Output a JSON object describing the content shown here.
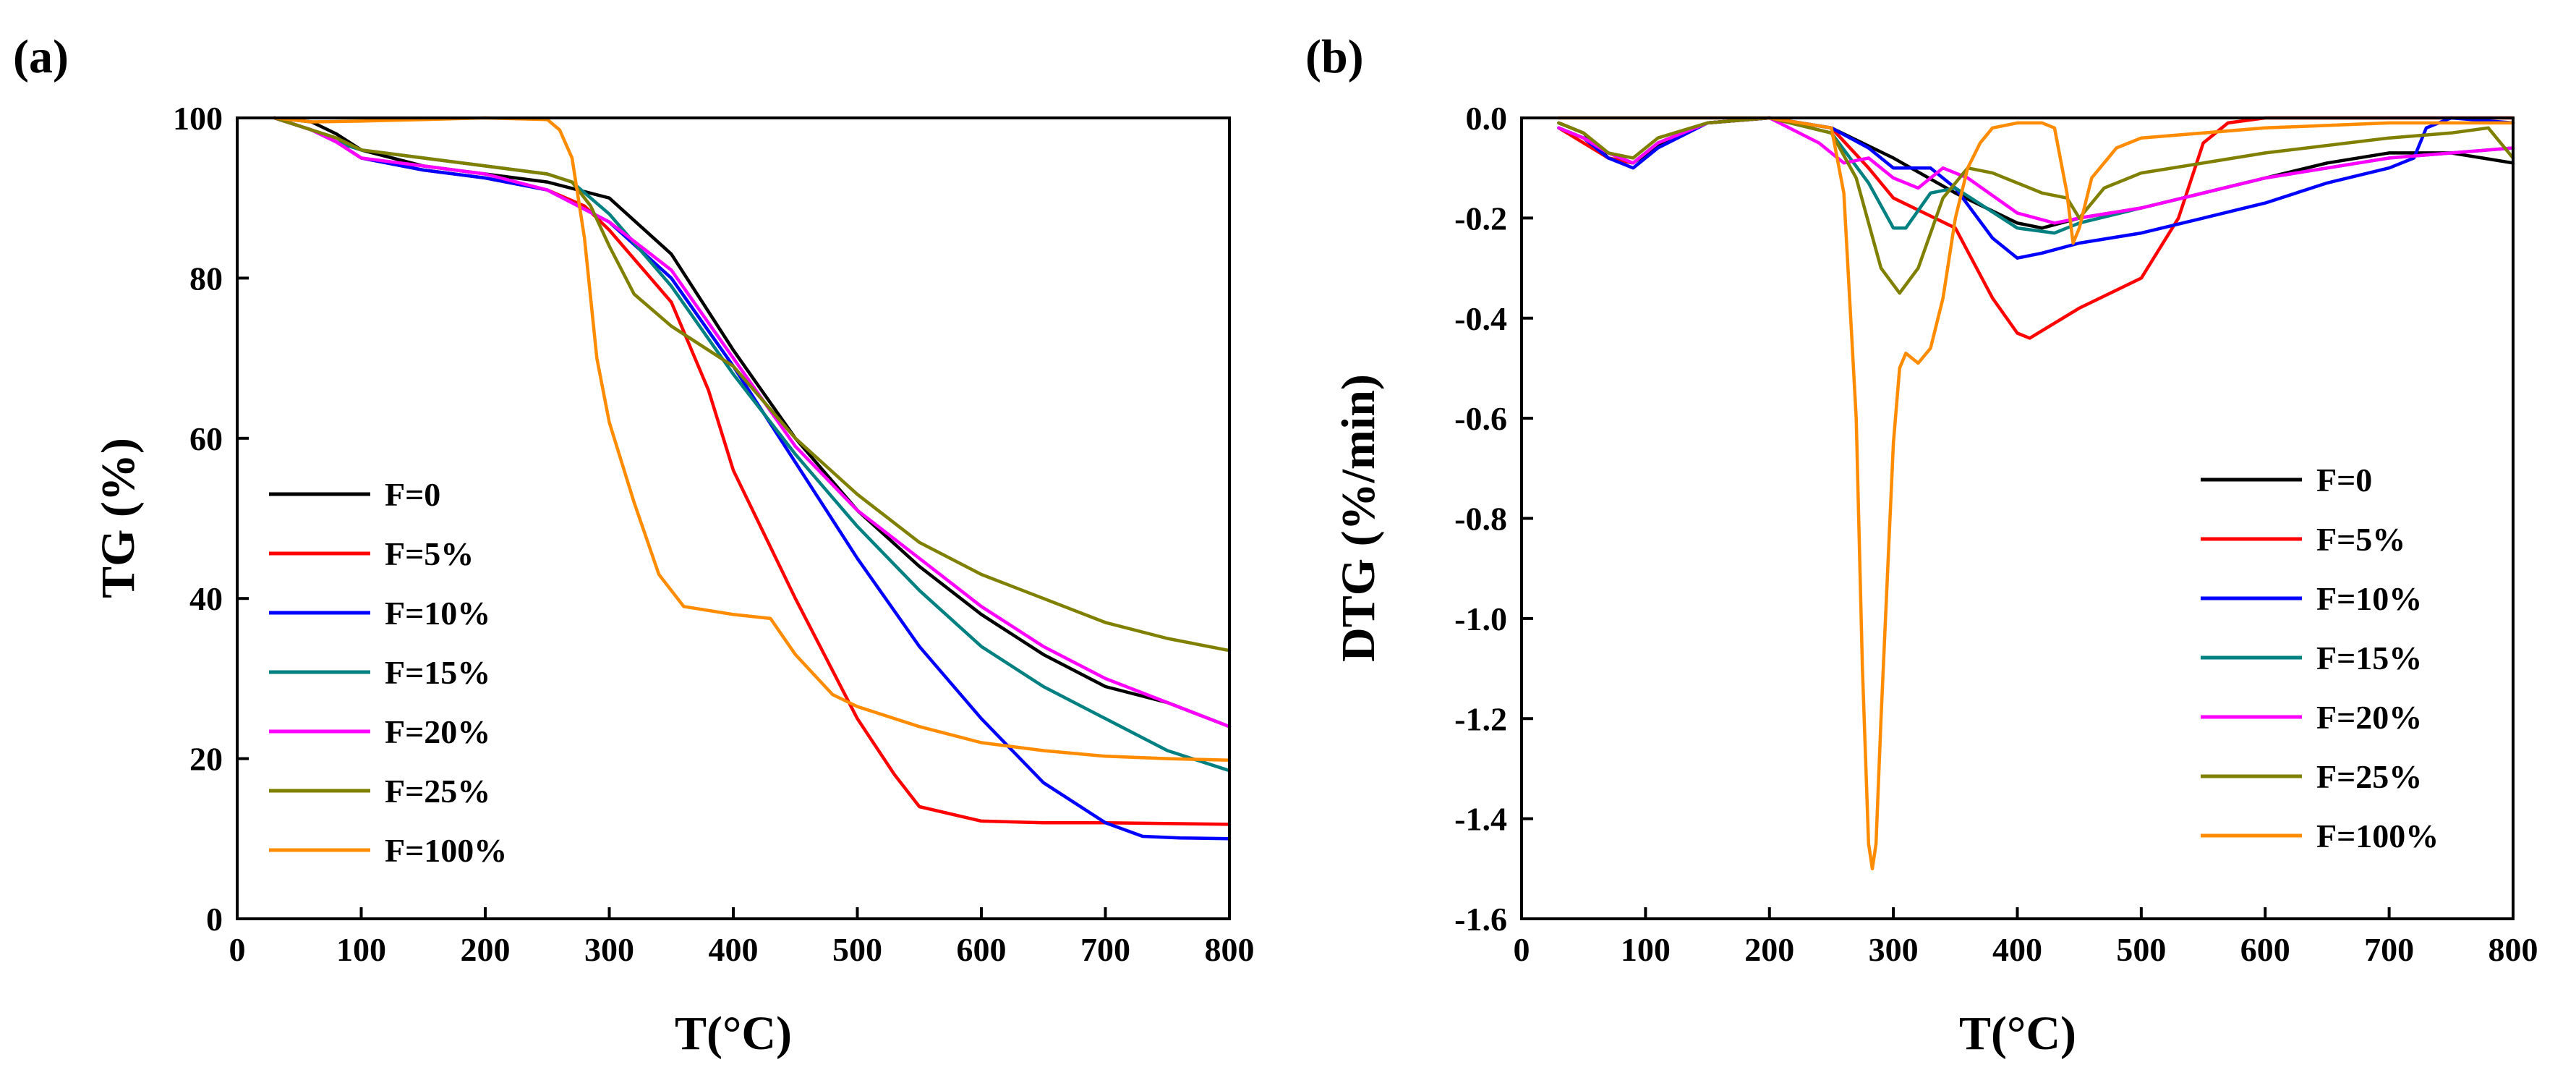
{
  "figure": {
    "panel_a_label": "(a)",
    "panel_b_label": "(b)"
  },
  "chart_data": [
    {
      "id": "a",
      "type": "line",
      "title": "",
      "xlabel": "T(°C)",
      "ylabel": "TG (%)",
      "xlim": [
        0,
        800
      ],
      "ylim": [
        0,
        100
      ],
      "xticks": [
        0,
        100,
        200,
        300,
        400,
        500,
        600,
        700,
        800
      ],
      "yticks": [
        0,
        20,
        40,
        60,
        80,
        100
      ],
      "ytick_labels": [
        "0",
        "20",
        "40",
        "60",
        "80",
        "100"
      ],
      "grid": false,
      "legend_position": "lower-left",
      "series": [
        {
          "name": "F=0",
          "color": "#000000",
          "x": [
            30,
            60,
            80,
            100,
            150,
            200,
            250,
            300,
            350,
            400,
            450,
            500,
            550,
            600,
            650,
            700,
            750,
            800
          ],
          "y": [
            100,
            99.5,
            98,
            96,
            94,
            93,
            92,
            90,
            83,
            71,
            60,
            51,
            44,
            38,
            33,
            29,
            27,
            24
          ]
        },
        {
          "name": "F=5%",
          "color": "#ff0000",
          "x": [
            30,
            60,
            80,
            100,
            150,
            200,
            250,
            280,
            300,
            350,
            380,
            400,
            450,
            500,
            530,
            550,
            600,
            650,
            700,
            800
          ],
          "y": [
            100,
            98.5,
            97,
            95,
            93.5,
            92.5,
            91,
            89,
            86,
            77,
            66,
            56,
            40,
            25,
            18,
            14,
            12.2,
            12,
            12,
            11.8
          ]
        },
        {
          "name": "F=10%",
          "color": "#0000ff",
          "x": [
            30,
            60,
            80,
            100,
            150,
            200,
            250,
            300,
            350,
            400,
            450,
            500,
            550,
            600,
            650,
            700,
            730,
            760,
            800
          ],
          "y": [
            100,
            98.5,
            97,
            95,
            93.5,
            92.5,
            91,
            87,
            80,
            69,
            57,
            45,
            34,
            25,
            17,
            12,
            10.3,
            10.1,
            10
          ]
        },
        {
          "name": "F=15%",
          "color": "#008080",
          "x": [
            30,
            60,
            80,
            100,
            150,
            200,
            250,
            270,
            300,
            350,
            400,
            450,
            500,
            550,
            600,
            650,
            700,
            750,
            800
          ],
          "y": [
            100,
            98.5,
            97,
            96,
            95,
            94,
            93,
            92,
            88,
            79,
            68,
            58,
            49,
            41,
            34,
            29,
            25,
            21,
            18.5
          ]
        },
        {
          "name": "F=20%",
          "color": "#ff00ff",
          "x": [
            30,
            60,
            80,
            100,
            150,
            200,
            250,
            300,
            350,
            400,
            450,
            500,
            550,
            600,
            650,
            700,
            750,
            800
          ],
          "y": [
            100,
            98.5,
            97,
            95,
            94,
            93,
            91,
            87,
            81,
            70,
            59,
            51,
            45,
            39,
            34,
            30,
            27,
            24
          ]
        },
        {
          "name": "F=25%",
          "color": "#808000",
          "x": [
            30,
            60,
            80,
            100,
            150,
            200,
            250,
            270,
            285,
            300,
            320,
            350,
            400,
            450,
            500,
            550,
            600,
            650,
            700,
            750,
            800
          ],
          "y": [
            100,
            98.5,
            97.5,
            96,
            95,
            94,
            93,
            92,
            89,
            84,
            78,
            74,
            69,
            60,
            53,
            47,
            43,
            40,
            37,
            35,
            33.5
          ]
        },
        {
          "name": "F=100%",
          "color": "#ff8c00",
          "x": [
            30,
            60,
            100,
            150,
            200,
            250,
            260,
            270,
            280,
            290,
            300,
            320,
            340,
            360,
            400,
            430,
            450,
            480,
            500,
            550,
            600,
            650,
            700,
            750,
            800
          ],
          "y": [
            100,
            99.5,
            99.6,
            99.8,
            100,
            99.8,
            98.5,
            95,
            85,
            70,
            62,
            52,
            43,
            39,
            38,
            37.5,
            33,
            28,
            26.5,
            24,
            22,
            21,
            20.3,
            20,
            19.8
          ]
        }
      ]
    },
    {
      "id": "b",
      "type": "line",
      "title": "",
      "xlabel": "T(°C)",
      "ylabel": "DTG (%/min)",
      "xlim": [
        0,
        800
      ],
      "ylim": [
        -1.6,
        0
      ],
      "xticks": [
        0,
        100,
        200,
        300,
        400,
        500,
        600,
        700,
        800
      ],
      "yticks": [
        0,
        -0.2,
        -0.4,
        -0.6,
        -0.8,
        -1.0,
        -1.2,
        -1.4,
        -1.6
      ],
      "ytick_labels": [
        "0.0",
        "-0.2",
        "-0.4",
        "-0.6",
        "-0.8",
        "-1.0",
        "-1.2",
        "-1.4",
        "-1.6"
      ],
      "grid": false,
      "legend_position": "lower-right",
      "series": [
        {
          "name": "F=0",
          "color": "#000000",
          "x": [
            30,
            50,
            70,
            90,
            120,
            150,
            200,
            250,
            300,
            350,
            400,
            420,
            450,
            500,
            550,
            600,
            650,
            700,
            750,
            800
          ],
          "y": [
            -0.01,
            -0.03,
            -0.08,
            -0.09,
            -0.04,
            -0.01,
            0,
            -0.02,
            -0.08,
            -0.15,
            -0.21,
            -0.22,
            -0.2,
            -0.18,
            -0.15,
            -0.12,
            -0.09,
            -0.07,
            -0.07,
            -0.09
          ]
        },
        {
          "name": "F=5%",
          "color": "#ff0000",
          "x": [
            30,
            50,
            70,
            90,
            110,
            150,
            200,
            250,
            280,
            300,
            350,
            380,
            400,
            410,
            450,
            500,
            530,
            550,
            570,
            600,
            700,
            800
          ],
          "y": [
            -0.02,
            -0.05,
            -0.08,
            -0.09,
            -0.05,
            -0.01,
            0,
            -0.02,
            -0.1,
            -0.16,
            -0.22,
            -0.36,
            -0.43,
            -0.44,
            -0.38,
            -0.32,
            -0.2,
            -0.05,
            -0.01,
            0,
            0,
            0
          ]
        },
        {
          "name": "F=10%",
          "color": "#0000ff",
          "x": [
            30,
            50,
            70,
            90,
            110,
            150,
            200,
            250,
            280,
            300,
            330,
            350,
            380,
            400,
            420,
            450,
            500,
            550,
            600,
            650,
            700,
            720,
            730,
            750,
            800
          ],
          "y": [
            -0.02,
            -0.04,
            -0.08,
            -0.1,
            -0.06,
            -0.01,
            0,
            -0.02,
            -0.06,
            -0.1,
            -0.1,
            -0.14,
            -0.24,
            -0.28,
            -0.27,
            -0.25,
            -0.23,
            -0.2,
            -0.17,
            -0.13,
            -0.1,
            -0.08,
            -0.02,
            0,
            -0.01
          ]
        },
        {
          "name": "F=15%",
          "color": "#008080",
          "x": [
            30,
            50,
            70,
            90,
            110,
            150,
            200,
            250,
            280,
            300,
            310,
            330,
            350,
            400,
            430,
            450,
            500,
            550,
            600,
            700,
            800
          ],
          "y": [
            -0.02,
            -0.04,
            -0.07,
            -0.09,
            -0.05,
            -0.01,
            0,
            -0.03,
            -0.13,
            -0.22,
            -0.22,
            -0.15,
            -0.14,
            -0.22,
            -0.23,
            -0.21,
            -0.18,
            -0.15,
            -0.12,
            -0.08,
            -0.06
          ]
        },
        {
          "name": "F=20%",
          "color": "#ff00ff",
          "x": [
            30,
            50,
            70,
            90,
            110,
            150,
            200,
            240,
            260,
            280,
            300,
            320,
            340,
            360,
            400,
            430,
            450,
            500,
            550,
            600,
            700,
            800
          ],
          "y": [
            -0.02,
            -0.04,
            -0.07,
            -0.09,
            -0.05,
            -0.01,
            0,
            -0.05,
            -0.09,
            -0.08,
            -0.12,
            -0.14,
            -0.1,
            -0.12,
            -0.19,
            -0.21,
            -0.2,
            -0.18,
            -0.15,
            -0.12,
            -0.08,
            -0.06
          ]
        },
        {
          "name": "F=25%",
          "color": "#808000",
          "x": [
            30,
            50,
            70,
            90,
            110,
            150,
            200,
            250,
            270,
            290,
            305,
            320,
            340,
            360,
            380,
            400,
            420,
            440,
            450,
            470,
            500,
            550,
            600,
            700,
            750,
            780,
            800
          ],
          "y": [
            -0.01,
            -0.03,
            -0.07,
            -0.08,
            -0.04,
            -0.01,
            0,
            -0.03,
            -0.12,
            -0.3,
            -0.35,
            -0.3,
            -0.16,
            -0.1,
            -0.11,
            -0.13,
            -0.15,
            -0.16,
            -0.2,
            -0.14,
            -0.11,
            -0.09,
            -0.07,
            -0.04,
            -0.03,
            -0.02,
            -0.08
          ]
        },
        {
          "name": "F=100%",
          "color": "#ff8c00",
          "x": [
            30,
            60,
            100,
            150,
            200,
            250,
            260,
            270,
            275,
            280,
            283,
            286,
            290,
            300,
            305,
            310,
            315,
            320,
            330,
            340,
            350,
            360,
            370,
            380,
            400,
            420,
            430,
            440,
            445,
            450,
            460,
            480,
            500,
            550,
            600,
            700,
            800
          ],
          "y": [
            0,
            0,
            0,
            0,
            0,
            -0.02,
            -0.15,
            -0.6,
            -1.1,
            -1.45,
            -1.5,
            -1.45,
            -1.2,
            -0.65,
            -0.5,
            -0.47,
            -0.48,
            -0.49,
            -0.46,
            -0.36,
            -0.2,
            -0.1,
            -0.05,
            -0.02,
            -0.01,
            -0.01,
            -0.02,
            -0.15,
            -0.25,
            -0.22,
            -0.12,
            -0.06,
            -0.04,
            -0.03,
            -0.02,
            -0.01,
            -0.01
          ]
        }
      ]
    }
  ]
}
